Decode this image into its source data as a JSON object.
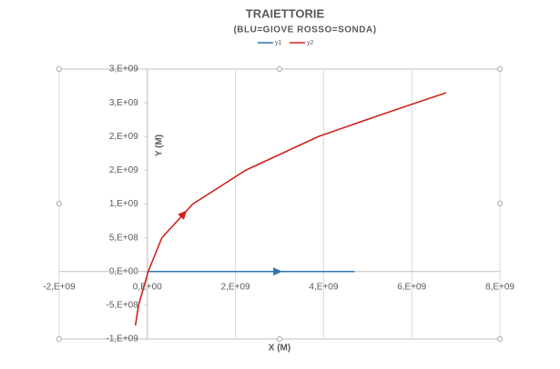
{
  "chart_data": {
    "type": "line",
    "title": "TRAIETTORIE",
    "subtitle": "(BLU=GIOVE  ROSSO=SONDA)",
    "x_label": "X (M)",
    "y_label": "Y (M)",
    "xlim": [
      -2000000000,
      8000000000
    ],
    "ylim": [
      -1000000000,
      3000000000
    ],
    "xticks": [
      {
        "value": -2000000000,
        "label": "-2,E+09"
      },
      {
        "value": 0,
        "label": "0,E+00"
      },
      {
        "value": 2000000000,
        "label": "2,E+09"
      },
      {
        "value": 4000000000,
        "label": "4,E+09"
      },
      {
        "value": 6000000000,
        "label": "6,E+09"
      },
      {
        "value": 8000000000,
        "label": "8,E+09"
      }
    ],
    "yticks": [
      {
        "value": -1000000000,
        "label": "-1,E+09"
      },
      {
        "value": -500000000,
        "label": "-5,E+08"
      },
      {
        "value": 0,
        "label": "0,E+00"
      },
      {
        "value": 500000000,
        "label": "5,E+08"
      },
      {
        "value": 1000000000,
        "label": "1,E+09"
      },
      {
        "value": 1500000000,
        "label": "2,E+09"
      },
      {
        "value": 2000000000,
        "label": "2,E+09"
      },
      {
        "value": 2500000000,
        "label": "3,E+09"
      },
      {
        "value": 3000000000,
        "label": "3,E+09"
      }
    ],
    "grid": "x",
    "series": [
      {
        "name": "y1",
        "color": "#2e75b6",
        "x": [
          0,
          4700000000
        ],
        "values": [
          0,
          0
        ]
      },
      {
        "name": "y2",
        "color": "#d0231c",
        "x": [
          -270000000,
          -200000000,
          20000000,
          330000000,
          1030000000,
          2230000000,
          3880000000,
          5330000000,
          6780000000
        ],
        "values": [
          -800000000,
          -500000000,
          0,
          500000000,
          1000000000,
          1500000000,
          2000000000,
          2330000000,
          2650000000
        ]
      }
    ]
  }
}
